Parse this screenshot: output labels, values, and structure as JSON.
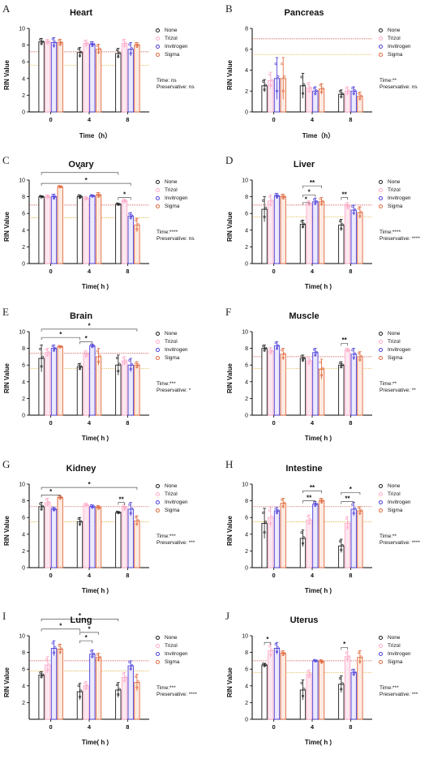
{
  "series_styles": [
    {
      "name": "None",
      "color": "#1a1a1a",
      "fill": "#ffffff"
    },
    {
      "name": "Trizol",
      "color": "#ffa8c8",
      "fill": "#fde8f0"
    },
    {
      "name": "Invitrogen",
      "color": "#4a3cd8",
      "fill": "#eceafd"
    },
    {
      "name": "Sigma",
      "color": "#e0673a",
      "fill": "#fdebe2"
    }
  ],
  "chart_data": [
    {
      "type": "bar",
      "label": "A",
      "title": "Heart",
      "xlabel": "Time（h）",
      "ylabel": "RIN Value",
      "categories": [
        "0",
        "4",
        "8"
      ],
      "ylim": [
        0,
        10
      ],
      "yticks": [
        0,
        2,
        4,
        6,
        8,
        10
      ],
      "series": [
        {
          "name": "None",
          "values": [
            8.4,
            7.1,
            7.0
          ],
          "err": [
            0.4,
            0.6,
            0.6
          ]
        },
        {
          "name": "Trizol",
          "values": [
            8.4,
            8.2,
            8.2
          ],
          "err": [
            0.3,
            0.4,
            0.5
          ]
        },
        {
          "name": "Invitrogen",
          "values": [
            8.3,
            8.1,
            7.5
          ],
          "err": [
            0.6,
            0.3,
            0.8
          ]
        },
        {
          "name": "Sigma",
          "values": [
            8.3,
            7.5,
            8.0
          ],
          "err": [
            0.4,
            0.6,
            0.3
          ]
        }
      ],
      "reflines": [
        7.2,
        5.6
      ],
      "stats": [
        "Time: ns",
        "Preservative:  ns"
      ],
      "brackets": []
    },
    {
      "type": "bar",
      "label": "B",
      "title": "Pancreas",
      "xlabel": "Time（h）",
      "ylabel": "RIN Value",
      "categories": [
        "0",
        "4",
        "8"
      ],
      "ylim": [
        0,
        8
      ],
      "yticks": [
        0,
        2,
        4,
        6,
        8
      ],
      "series": [
        {
          "name": "None",
          "values": [
            2.5,
            2.5,
            1.7
          ],
          "err": [
            0.6,
            1.2,
            0.4
          ]
        },
        {
          "name": "Trizol",
          "values": [
            3.0,
            2.3,
            2.0
          ],
          "err": [
            0.8,
            0.5,
            0.4
          ]
        },
        {
          "name": "Invitrogen",
          "values": [
            3.2,
            2.0,
            2.0
          ],
          "err": [
            2.0,
            0.4,
            0.4
          ]
        },
        {
          "name": "Sigma",
          "values": [
            3.2,
            2.2,
            1.5
          ],
          "err": [
            2.0,
            0.5,
            0.4
          ]
        }
      ],
      "reflines": [
        7.0,
        5.5
      ],
      "stats": [
        "Time:**",
        "Preservative:  ns"
      ],
      "brackets": []
    },
    {
      "type": "bar",
      "label": "C",
      "title": "Ovary",
      "xlabel": "Time(  h  )",
      "ylabel": "RIN Value",
      "categories": [
        "0",
        "4",
        "8"
      ],
      "ylim": [
        0,
        10
      ],
      "yticks": [
        0,
        2,
        4,
        6,
        8,
        10
      ],
      "series": [
        {
          "name": "None",
          "values": [
            8.0,
            8.0,
            7.1
          ],
          "err": [
            0.1,
            0.2,
            0.1
          ]
        },
        {
          "name": "Trizol",
          "values": [
            8.0,
            7.8,
            7.5
          ],
          "err": [
            0.2,
            0.2,
            0.2
          ]
        },
        {
          "name": "Invitrogen",
          "values": [
            8.0,
            8.1,
            5.7
          ],
          "err": [
            0.3,
            0.1,
            0.4
          ]
        },
        {
          "name": "Sigma",
          "values": [
            9.2,
            8.2,
            4.6
          ],
          "err": [
            0.1,
            0.3,
            0.8
          ]
        }
      ],
      "reflines": [
        7.0,
        5.5
      ],
      "stats": [
        "Time:****",
        "Preservative:  ns"
      ],
      "brackets": [
        {
          "from": 0,
          "to": 8,
          "y": 10.9,
          "label": "*"
        },
        {
          "from": 0,
          "to": 10,
          "y": 9.6,
          "label": "*"
        },
        {
          "from": 8,
          "to": 10,
          "y": 7.9,
          "label": "*"
        }
      ]
    },
    {
      "type": "bar",
      "label": "D",
      "title": "Liver",
      "xlabel": "Time(  h  )",
      "ylabel": "RIN Value",
      "categories": [
        "0",
        "4",
        "8"
      ],
      "ylim": [
        0,
        10
      ],
      "yticks": [
        0,
        2,
        4,
        6,
        8,
        10
      ],
      "series": [
        {
          "name": "None",
          "values": [
            6.5,
            4.7,
            4.6
          ],
          "err": [
            1.5,
            0.5,
            0.7
          ]
        },
        {
          "name": "Trizol",
          "values": [
            7.5,
            7.2,
            6.9
          ],
          "err": [
            0.7,
            0.3,
            0.4
          ]
        },
        {
          "name": "Invitrogen",
          "values": [
            8.1,
            7.4,
            6.4
          ],
          "err": [
            0.3,
            0.4,
            0.6
          ]
        },
        {
          "name": "Sigma",
          "values": [
            8.0,
            7.4,
            6.1
          ],
          "err": [
            0.3,
            0.5,
            0.7
          ]
        }
      ],
      "reflines": [
        7.0,
        5.6
      ],
      "stats": [
        "Time:****",
        "Preservative:  ****"
      ],
      "brackets": [
        {
          "from": 4,
          "to": 7,
          "y": 9.3,
          "label": "**"
        },
        {
          "from": 4,
          "to": 6,
          "y": 8.2,
          "label": "*"
        },
        {
          "from": 4,
          "to": 5,
          "y": 7.3,
          "label": "*"
        },
        {
          "from": 8,
          "to": 9,
          "y": 7.9,
          "label": "**"
        }
      ]
    },
    {
      "type": "bar",
      "label": "E",
      "title": "Brain",
      "xlabel": "Time(  h  )",
      "ylabel": "RIN Value",
      "categories": [
        "0",
        "4",
        "8"
      ],
      "ylim": [
        0,
        10
      ],
      "yticks": [
        0,
        2,
        4,
        6,
        8,
        10
      ],
      "series": [
        {
          "name": "None",
          "values": [
            6.8,
            5.8,
            6.0
          ],
          "err": [
            1.6,
            0.4,
            1.2
          ]
        },
        {
          "name": "Trizol",
          "values": [
            7.5,
            7.3,
            6.5
          ],
          "err": [
            0.5,
            0.4,
            0.5
          ]
        },
        {
          "name": "Invitrogen",
          "values": [
            8.0,
            8.3,
            6.0
          ],
          "err": [
            0.4,
            0.2,
            0.8
          ]
        },
        {
          "name": "Sigma",
          "values": [
            8.2,
            7.0,
            6.0
          ],
          "err": [
            0.1,
            1.0,
            0.4
          ]
        }
      ],
      "reflines": [
        7.4,
        5.6
      ],
      "stats": [
        "Time:***",
        "Preservative: *"
      ],
      "brackets": [
        {
          "from": 0,
          "to": 11,
          "y": 10.3,
          "label": "*"
        },
        {
          "from": 0,
          "to": 4,
          "y": 9.3,
          "label": "*"
        },
        {
          "from": 4,
          "to": 6,
          "y": 8.8,
          "label": "*"
        }
      ]
    },
    {
      "type": "bar",
      "label": "F",
      "title": "Muscle",
      "xlabel": "Time(  h  )",
      "ylabel": "RIN Value",
      "categories": [
        "0",
        "4",
        "8"
      ],
      "ylim": [
        0,
        10
      ],
      "yticks": [
        0,
        2,
        4,
        6,
        8,
        10
      ],
      "series": [
        {
          "name": "None",
          "values": [
            8.0,
            6.8,
            6.0
          ],
          "err": [
            0.4,
            0.4,
            0.4
          ]
        },
        {
          "name": "Trizol",
          "values": [
            7.7,
            6.5,
            7.8
          ],
          "err": [
            0.4,
            0.5,
            0.2
          ]
        },
        {
          "name": "Invitrogen",
          "values": [
            8.3,
            7.5,
            7.3
          ],
          "err": [
            0.5,
            0.5,
            0.7
          ]
        },
        {
          "name": "Sigma",
          "values": [
            7.3,
            5.5,
            7.0
          ],
          "err": [
            0.7,
            1.2,
            0.6
          ]
        }
      ],
      "reflines": [
        7.0,
        5.6
      ],
      "stats": [
        "Time:**",
        "Preservative: **"
      ],
      "brackets": [
        {
          "from": 8,
          "to": 9,
          "y": 8.6,
          "label": "**"
        }
      ]
    },
    {
      "type": "bar",
      "label": "G",
      "title": "Kidney",
      "xlabel": "Time(  h  )",
      "ylabel": "RIN Value",
      "categories": [
        "0",
        "4",
        "8"
      ],
      "ylim": [
        0,
        10
      ],
      "yticks": [
        0,
        2,
        4,
        6,
        8,
        10
      ],
      "series": [
        {
          "name": "None",
          "values": [
            7.3,
            5.5,
            6.6
          ],
          "err": [
            0.5,
            0.5,
            0.1
          ]
        },
        {
          "name": "Trizol",
          "values": [
            7.8,
            7.5,
            7.2
          ],
          "err": [
            0.5,
            0.2,
            0.4
          ]
        },
        {
          "name": "Invitrogen",
          "values": [
            7.0,
            7.3,
            7.0
          ],
          "err": [
            0.2,
            0.2,
            0.8
          ]
        },
        {
          "name": "Sigma",
          "values": [
            8.4,
            7.2,
            5.6
          ],
          "err": [
            0.2,
            0.2,
            0.6
          ]
        }
      ],
      "reflines": [
        7.3,
        5.5
      ],
      "stats": [
        "Time:***",
        "Preservative: ***"
      ],
      "brackets": [
        {
          "from": 0,
          "to": 11,
          "y": 9.6,
          "label": "*"
        },
        {
          "from": 0,
          "to": 3,
          "y": 8.7,
          "label": "*"
        },
        {
          "from": 8,
          "to": 9,
          "y": 7.8,
          "label": "**"
        }
      ]
    },
    {
      "type": "bar",
      "label": "H",
      "title": "Intestine",
      "xlabel": "Time(  h  )",
      "ylabel": "RIN Value",
      "categories": [
        "0",
        "4",
        "8"
      ],
      "ylim": [
        0,
        10
      ],
      "yticks": [
        0,
        2,
        4,
        6,
        8,
        10
      ],
      "series": [
        {
          "name": "None",
          "values": [
            5.3,
            3.5,
            2.6
          ],
          "err": [
            1.8,
            1.0,
            0.8
          ]
        },
        {
          "name": "Trizol",
          "values": [
            6.0,
            5.7,
            5.3
          ],
          "err": [
            1.2,
            0.6,
            0.8
          ]
        },
        {
          "name": "Invitrogen",
          "values": [
            6.8,
            7.6,
            7.0
          ],
          "err": [
            0.4,
            0.3,
            0.8
          ]
        },
        {
          "name": "Sigma",
          "values": [
            7.7,
            8.0,
            6.8
          ],
          "err": [
            0.6,
            0.3,
            0.5
          ]
        }
      ],
      "reflines": [
        7.3,
        5.5
      ],
      "stats": [
        "Time:**",
        "Preservative: ****"
      ],
      "brackets": [
        {
          "from": 4,
          "to": 7,
          "y": 9.2,
          "label": "**"
        },
        {
          "from": 4,
          "to": 6,
          "y": 8.0,
          "label": "**"
        },
        {
          "from": 8,
          "to": 11,
          "y": 9.0,
          "label": "*"
        },
        {
          "from": 8,
          "to": 10,
          "y": 7.9,
          "label": "**"
        }
      ]
    },
    {
      "type": "bar",
      "label": "I",
      "title": "Lung",
      "xlabel": "Time(  h  )",
      "ylabel": "RIN Value",
      "categories": [
        "0",
        "4",
        "8"
      ],
      "ylim": [
        0,
        10
      ],
      "yticks": [
        2,
        4,
        6,
        8,
        10
      ],
      "series": [
        {
          "name": "None",
          "values": [
            5.3,
            3.3,
            3.5
          ],
          "err": [
            0.4,
            1.0,
            0.9
          ]
        },
        {
          "name": "Trizol",
          "values": [
            6.5,
            4.0,
            5.0
          ],
          "err": [
            1.0,
            0.5,
            0.6
          ]
        },
        {
          "name": "Invitrogen",
          "values": [
            8.5,
            7.8,
            6.4
          ],
          "err": [
            0.9,
            0.5,
            0.6
          ]
        },
        {
          "name": "Sigma",
          "values": [
            8.4,
            7.4,
            4.4
          ],
          "err": [
            0.6,
            0.5,
            1.0
          ]
        }
      ],
      "reflines": [
        7.0,
        5.8
      ],
      "stats": [
        "Time:***",
        "Preservative: ****"
      ],
      "brackets": [
        {
          "from": 0,
          "to": 8,
          "y": 12.0,
          "label": "*"
        },
        {
          "from": 0,
          "to": 4,
          "y": 10.8,
          "label": "*"
        },
        {
          "from": 4,
          "to": 6,
          "y": 9.4,
          "label": "*"
        },
        {
          "from": 4,
          "to": 7,
          "y": 10.4,
          "label": "*"
        }
      ]
    },
    {
      "type": "bar",
      "label": "J",
      "title": "Uterus",
      "xlabel": "Time(  h  )",
      "ylabel": "RIN Value",
      "categories": [
        "0",
        "4",
        "8"
      ],
      "ylim": [
        0,
        10
      ],
      "yticks": [
        0,
        2,
        4,
        6,
        8,
        10
      ],
      "series": [
        {
          "name": "None",
          "values": [
            6.5,
            3.5,
            4.2
          ],
          "err": [
            0.2,
            1.2,
            1.0
          ]
        },
        {
          "name": "Trizol",
          "values": [
            8.2,
            5.4,
            7.5
          ],
          "err": [
            0.8,
            0.5,
            0.6
          ]
        },
        {
          "name": "Invitrogen",
          "values": [
            8.5,
            7.0,
            5.6
          ],
          "err": [
            0.7,
            0.1,
            0.4
          ]
        },
        {
          "name": "Sigma",
          "values": [
            7.9,
            6.9,
            7.4
          ],
          "err": [
            0.3,
            0.2,
            0.8
          ]
        }
      ],
      "reflines": [
        7.0,
        5.6
      ],
      "stats": [
        "Time:***",
        "Preservative: ***"
      ],
      "brackets": [
        {
          "from": 0,
          "to": 1,
          "y": 9.2,
          "label": "*"
        },
        {
          "from": 8,
          "to": 9,
          "y": 8.6,
          "label": "*"
        }
      ]
    }
  ]
}
